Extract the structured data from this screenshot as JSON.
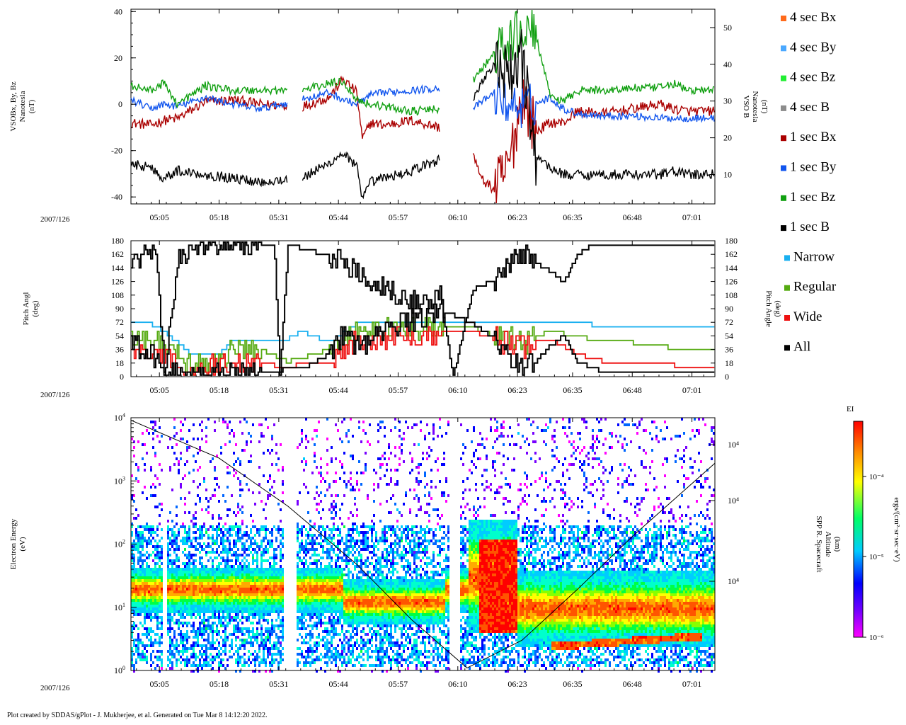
{
  "footer": "Plot created by SDDAS/gPlot - J. Mukherjee, et al.  Generated on Tue Mar 8 14:12:20 2022.",
  "date_label": "2007/126",
  "time_ticks": [
    "05:05",
    "05:18",
    "05:31",
    "05:44",
    "05:57",
    "06:10",
    "06:23",
    "06:35",
    "06:48",
    "07:01"
  ],
  "colors": {
    "bx4": "#ff6a1a",
    "by4": "#4aa8ff",
    "bz4": "#22ee33",
    "b4": "#8c8c8c",
    "bx1": "#aa0000",
    "by1": "#1155ee",
    "bz1": "#11a011",
    "b1": "#000000",
    "narrow": "#1ab0f0",
    "regular": "#55aa11",
    "wide": "#ee1111",
    "all": "#000000"
  },
  "legend": [
    {
      "label": "4 sec Bx",
      "color": "#ff6a1a"
    },
    {
      "label": "4 sec By",
      "color": "#4aa8ff"
    },
    {
      "label": "4 sec Bz",
      "color": "#22ee33"
    },
    {
      "label": "4 sec B",
      "color": "#8c8c8c"
    },
    {
      "label": "1 sec Bx",
      "color": "#aa0000"
    },
    {
      "label": "1 sec By",
      "color": "#1155ee"
    },
    {
      "label": "1 sec Bz",
      "color": "#11a011"
    },
    {
      "label": "1 sec B",
      "color": "#000000"
    },
    {
      "label": "Narrow",
      "color": "#1ab0f0"
    },
    {
      "label": "Regular",
      "color": "#55aa11"
    },
    {
      "label": "Wide",
      "color": "#ee1111"
    },
    {
      "label": "All",
      "color": "#000000"
    }
  ],
  "chart_data": [
    {
      "type": "line",
      "title": "",
      "ylabel": [
        "VSOBx, By, Bz",
        "Nanotesla",
        "(nT)"
      ],
      "ylabel_right": [
        "VSO B",
        "Nanotesla",
        "(nT)"
      ],
      "ylim": [
        -43,
        41
      ],
      "ylim_right": [
        2,
        55
      ],
      "yticks": [
        -40,
        -20,
        0,
        20,
        40
      ],
      "yticks_right": [
        10,
        20,
        30,
        40,
        50
      ],
      "gaps": [
        [
          5.55,
          5.6
        ],
        [
          6.15,
          6.22
        ]
      ],
      "series": [
        {
          "name": "1 sec Bx",
          "color_key": "bx1",
          "axis": "left",
          "x": [
            4.98,
            5.05,
            5.1,
            5.15,
            5.25,
            5.35,
            5.45,
            5.6,
            5.7,
            5.75,
            5.8,
            5.82,
            5.85,
            5.9,
            6.0,
            6.1,
            6.15,
            6.22,
            6.25,
            6.3,
            6.35,
            6.4,
            6.45,
            6.5,
            6.55,
            6.6,
            6.7,
            6.8,
            6.9,
            6.95,
            7.0,
            7.1
          ],
          "y": [
            -8,
            -9,
            -7,
            -6,
            1,
            2,
            0,
            -1,
            3,
            11,
            5,
            -15,
            -8,
            -9,
            -7,
            -10,
            null,
            -20,
            -32,
            -37,
            -28,
            5,
            -12,
            -8,
            -8,
            -3,
            -4,
            -2,
            0,
            -2,
            -3,
            -3
          ]
        },
        {
          "name": "1 sec By",
          "color_key": "by1",
          "axis": "left",
          "x": [
            4.98,
            5.05,
            5.1,
            5.15,
            5.25,
            5.35,
            5.45,
            5.6,
            5.7,
            5.75,
            5.8,
            5.85,
            5.9,
            6.0,
            6.1,
            6.15,
            6.22,
            6.3,
            6.35,
            6.4,
            6.45,
            6.5,
            6.55,
            6.6,
            6.7,
            6.8,
            6.9,
            7.0,
            7.1
          ],
          "y": [
            2,
            -2,
            0,
            -1,
            3,
            0,
            -2,
            2,
            5,
            2,
            0,
            4,
            5,
            6,
            7,
            null,
            -2,
            5,
            0,
            -1,
            0,
            3,
            -2,
            -4,
            -5,
            -5,
            -6,
            -6,
            -6
          ]
        },
        {
          "name": "1 sec Bz",
          "color_key": "bz1",
          "axis": "left",
          "x": [
            4.98,
            5.05,
            5.1,
            5.15,
            5.25,
            5.35,
            5.45,
            5.6,
            5.7,
            5.75,
            5.8,
            5.85,
            5.9,
            6.0,
            6.1,
            6.15,
            6.22,
            6.3,
            6.35,
            6.4,
            6.45,
            6.5,
            6.55,
            6.6,
            6.7,
            6.8,
            6.9,
            6.95,
            7.0,
            7.1
          ],
          "y": [
            8,
            6,
            9,
            0,
            8,
            6,
            6,
            6,
            9,
            10,
            2,
            0,
            -1,
            -3,
            -2,
            null,
            10,
            22,
            26,
            32,
            30,
            4,
            1,
            6,
            6,
            7,
            7,
            9,
            6,
            6
          ]
        },
        {
          "name": "1 sec B",
          "color_key": "b1",
          "axis": "right",
          "x": [
            4.98,
            5.05,
            5.1,
            5.15,
            5.25,
            5.35,
            5.45,
            5.6,
            5.7,
            5.75,
            5.8,
            5.82,
            5.85,
            5.9,
            6.0,
            6.1,
            6.15,
            6.22,
            6.25,
            6.3,
            6.35,
            6.4,
            6.45,
            6.5,
            6.55,
            6.6,
            6.7,
            6.8,
            6.9,
            6.95,
            7.0,
            7.1
          ],
          "y": [
            13,
            12,
            9,
            11,
            10,
            9,
            8,
            9,
            13,
            16,
            12,
            3,
            8,
            9,
            11,
            14,
            null,
            30,
            35,
            40,
            36,
            42,
            15,
            12,
            10,
            10,
            10,
            10,
            10,
            11,
            10,
            10
          ]
        }
      ]
    },
    {
      "type": "line",
      "title": "",
      "ylabel": [
        "Pitch Angl",
        "(deg)"
      ],
      "ylabel_right": [
        "Pitch Angle",
        "(deg)"
      ],
      "ylim": [
        0,
        180
      ],
      "yticks": [
        0,
        18,
        36,
        54,
        72,
        90,
        108,
        126,
        144,
        162,
        180
      ],
      "series": [
        {
          "name": "All (upper)",
          "color_key": "all",
          "x": [
            4.98,
            5.05,
            5.07,
            5.1,
            5.15,
            5.2,
            5.35,
            5.45,
            5.5,
            5.52,
            5.55,
            5.6,
            5.7,
            5.75,
            5.8,
            5.85,
            5.9,
            5.95,
            6.0,
            6.05,
            6.1,
            6.15,
            6.22,
            6.25,
            6.3,
            6.35,
            6.4,
            6.45,
            6.5,
            6.55,
            6.6,
            6.65,
            7.1
          ],
          "y": [
            150,
            170,
            175,
            0,
            150,
            175,
            175,
            175,
            175,
            0,
            175,
            170,
            160,
            150,
            140,
            130,
            120,
            110,
            100,
            95,
            110,
            0,
            115,
            120,
            130,
            145,
            160,
            150,
            140,
            125,
            160,
            175,
            175
          ]
        },
        {
          "name": "All (lower)",
          "color_key": "all",
          "x": [
            4.98,
            5.05,
            5.1,
            5.2,
            5.35,
            5.45,
            5.55,
            5.6,
            5.7,
            5.75,
            5.8,
            5.85,
            5.9,
            5.95,
            6.0,
            6.05,
            6.1,
            6.22,
            6.3,
            6.35,
            6.4,
            6.45,
            6.5,
            6.55,
            6.6,
            6.7,
            7.1
          ],
          "y": [
            50,
            30,
            5,
            5,
            5,
            5,
            10,
            10,
            30,
            60,
            40,
            50,
            60,
            70,
            75,
            80,
            90,
            70,
            50,
            25,
            15,
            20,
            40,
            55,
            20,
            5,
            5
          ]
        },
        {
          "name": "Narrow",
          "color_key": "narrow",
          "x": [
            4.98,
            5.05,
            5.1,
            5.2,
            5.3,
            5.35,
            5.45,
            5.55,
            5.6,
            5.7,
            5.8,
            6.22,
            6.3,
            6.4,
            6.5,
            6.6,
            6.7,
            6.8,
            6.9,
            7.0,
            7.1
          ],
          "y": [
            72,
            70,
            60,
            30,
            30,
            50,
            50,
            50,
            60,
            45,
            70,
            72,
            70,
            70,
            72,
            72,
            66,
            66,
            66,
            63,
            63
          ]
        },
        {
          "name": "Regular",
          "color_key": "regular",
          "x": [
            4.98,
            5.05,
            5.1,
            5.2,
            5.3,
            5.35,
            5.45,
            5.55,
            5.6,
            5.7,
            5.8,
            6.22,
            6.3,
            6.4,
            6.5,
            6.6,
            6.7,
            6.8,
            6.9,
            7.0,
            7.1
          ],
          "y": [
            54,
            50,
            40,
            12,
            20,
            36,
            36,
            20,
            25,
            36,
            60,
            66,
            54,
            45,
            60,
            54,
            45,
            45,
            40,
            36,
            36
          ]
        },
        {
          "name": "Wide",
          "color_key": "wide",
          "x": [
            4.98,
            5.05,
            5.1,
            5.2,
            5.35,
            5.45,
            5.55,
            5.6,
            5.7,
            5.8,
            6.22,
            6.3,
            6.4,
            6.5,
            6.6,
            6.7,
            6.8,
            6.9,
            7.0,
            7.1
          ],
          "y": [
            36,
            30,
            25,
            10,
            18,
            18,
            12,
            18,
            20,
            50,
            60,
            50,
            40,
            50,
            30,
            20,
            18,
            18,
            12,
            12
          ]
        }
      ]
    },
    {
      "type": "heatmap",
      "title": "",
      "ylabel": [
        "Electron Energy",
        "(eV)"
      ],
      "ylabel_right": [
        "SPP R. Spacecraft",
        "Altitude",
        "(km)"
      ],
      "ylim_log10": [
        0,
        4
      ],
      "yticks_log10": [
        0,
        1,
        2,
        3,
        4
      ],
      "right_ticks": [
        "10⁴",
        "10⁴",
        "10⁴"
      ],
      "colorbar": {
        "title": "EI",
        "label": "ergs/(cm²·sr·sec·eV)",
        "ticks": [
          "10⁻⁶",
          "10⁻⁵",
          "10⁻⁴"
        ]
      },
      "gaps": [
        [
          5.09,
          5.11
        ],
        [
          5.53,
          5.58
        ],
        [
          6.13,
          6.17
        ]
      ],
      "altitude_trace": {
        "x": [
          4.98,
          5.3,
          5.55,
          5.8,
          6.0,
          6.2,
          6.4,
          6.6,
          6.8,
          7.1
        ],
        "y_frac": [
          0.99,
          0.84,
          0.65,
          0.42,
          0.2,
          0.01,
          0.12,
          0.32,
          0.53,
          0.82
        ]
      }
    }
  ]
}
